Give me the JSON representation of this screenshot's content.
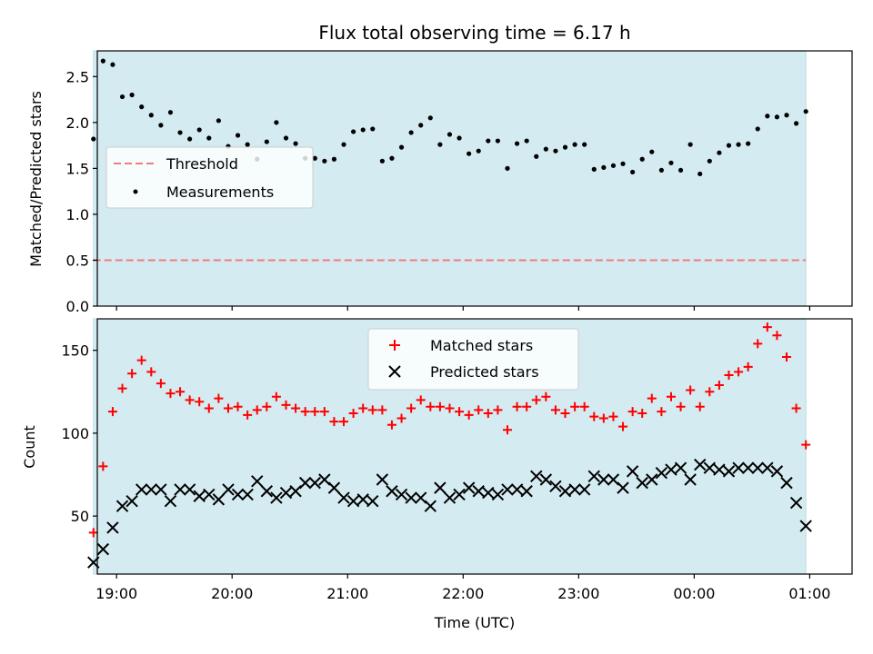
{
  "chart_data": {
    "type": "scatter",
    "title": "Flux total observing time = 6.17 h",
    "xlabel": "Time (UTC)",
    "x_ticks": [
      "19:00",
      "20:00",
      "21:00",
      "22:00",
      "23:00",
      "00:00",
      "01:00"
    ],
    "x_range": [
      "18:50",
      "01:22"
    ],
    "observing_window": [
      "18:48",
      "00:58"
    ],
    "colors": {
      "shade": "#d4ebf1",
      "threshold": "#f07c7c",
      "measurements": "#000000",
      "matched": "#ff0000",
      "predicted": "#000000"
    },
    "panels": [
      {
        "ylabel": "Matched/Predicted stars",
        "ylim": [
          0,
          2.78
        ],
        "y_ticks": [
          "0.0",
          "0.5",
          "1.0",
          "1.5",
          "2.0",
          "2.5"
        ],
        "legend": {
          "placement": "center-left",
          "entries": [
            "Threshold",
            "Measurements"
          ]
        },
        "threshold": {
          "name": "Threshold",
          "y": 0.5
        },
        "series": [
          {
            "name": "Measurements",
            "marker": "dot",
            "x": [
              "18:48",
              "18:53",
              "18:58",
              "19:03",
              "19:08",
              "19:13",
              "19:18",
              "19:23",
              "19:28",
              "19:33",
              "19:38",
              "19:43",
              "19:48",
              "19:53",
              "19:58",
              "20:03",
              "20:08",
              "20:13",
              "20:18",
              "20:23",
              "20:28",
              "20:33",
              "20:38",
              "20:43",
              "20:48",
              "20:53",
              "20:58",
              "21:03",
              "21:08",
              "21:13",
              "21:18",
              "21:23",
              "21:28",
              "21:33",
              "21:38",
              "21:43",
              "21:48",
              "21:53",
              "21:58",
              "22:03",
              "22:08",
              "22:13",
              "22:18",
              "22:23",
              "22:28",
              "22:33",
              "22:38",
              "22:43",
              "22:48",
              "22:53",
              "22:58",
              "23:03",
              "23:08",
              "23:13",
              "23:18",
              "23:23",
              "23:28",
              "23:33",
              "23:38",
              "23:43",
              "23:48",
              "23:53",
              "23:58",
              "00:03",
              "00:08",
              "00:13",
              "00:18",
              "00:23",
              "00:28",
              "00:33",
              "00:38",
              "00:43",
              "00:48",
              "00:53",
              "00:58"
            ],
            "y": [
              1.82,
              2.67,
              2.63,
              2.28,
              2.3,
              2.17,
              2.08,
              1.97,
              2.11,
              1.89,
              1.82,
              1.92,
              1.83,
              2.02,
              1.74,
              1.86,
              1.76,
              1.6,
              1.79,
              2.0,
              1.83,
              1.77,
              1.61,
              1.61,
              1.58,
              1.6,
              1.76,
              1.9,
              1.92,
              1.93,
              1.58,
              1.61,
              1.73,
              1.89,
              1.97,
              2.05,
              1.76,
              1.87,
              1.83,
              1.66,
              1.69,
              1.8,
              1.8,
              1.5,
              1.77,
              1.8,
              1.63,
              1.71,
              1.69,
              1.73,
              1.76,
              1.76,
              1.49,
              1.51,
              1.53,
              1.55,
              1.46,
              1.6,
              1.68,
              1.48,
              1.56,
              1.48,
              1.76,
              1.44,
              1.58,
              1.67,
              1.75,
              1.76,
              1.77,
              1.93,
              2.07,
              2.06,
              2.08,
              1.99,
              2.12
            ]
          }
        ]
      },
      {
        "ylabel": "Count",
        "ylim": [
          15,
          169
        ],
        "y_ticks": [
          "50",
          "100",
          "150"
        ],
        "legend": {
          "placement": "upper-center",
          "entries": [
            "Matched stars",
            "Predicted stars"
          ]
        },
        "series": [
          {
            "name": "Matched stars",
            "marker": "plus",
            "x": [
              "18:48",
              "18:53",
              "18:58",
              "19:03",
              "19:08",
              "19:13",
              "19:18",
              "19:23",
              "19:28",
              "19:33",
              "19:38",
              "19:43",
              "19:48",
              "19:53",
              "19:58",
              "20:03",
              "20:08",
              "20:13",
              "20:18",
              "20:23",
              "20:28",
              "20:33",
              "20:38",
              "20:43",
              "20:48",
              "20:53",
              "20:58",
              "21:03",
              "21:08",
              "21:13",
              "21:18",
              "21:23",
              "21:28",
              "21:33",
              "21:38",
              "21:43",
              "21:48",
              "21:53",
              "21:58",
              "22:03",
              "22:08",
              "22:13",
              "22:18",
              "22:23",
              "22:28",
              "22:33",
              "22:38",
              "22:43",
              "22:48",
              "22:53",
              "22:58",
              "23:03",
              "23:08",
              "23:13",
              "23:18",
              "23:23",
              "23:28",
              "23:33",
              "23:38",
              "23:43",
              "23:48",
              "23:53",
              "23:58",
              "00:03",
              "00:08",
              "00:13",
              "00:18",
              "00:23",
              "00:28",
              "00:33",
              "00:38",
              "00:43",
              "00:48",
              "00:53",
              "00:58"
            ],
            "y": [
              40,
              80,
              113,
              127,
              136,
              144,
              137,
              130,
              124,
              125,
              120,
              119,
              115,
              121,
              115,
              116,
              111,
              114,
              116,
              122,
              117,
              115,
              113,
              113,
              113,
              107,
              107,
              112,
              115,
              114,
              114,
              105,
              109,
              115,
              120,
              116,
              116,
              115,
              113,
              111,
              114,
              112,
              114,
              102,
              116,
              116,
              120,
              122,
              114,
              112,
              116,
              116,
              110,
              109,
              110,
              104,
              113,
              112,
              121,
              113,
              122,
              116,
              126,
              116,
              125,
              129,
              135,
              137,
              140,
              154,
              164,
              159,
              146,
              115,
              93
            ]
          },
          {
            "name": "Predicted stars",
            "marker": "x",
            "x": [
              "18:48",
              "18:53",
              "18:58",
              "19:03",
              "19:08",
              "19:13",
              "19:18",
              "19:23",
              "19:28",
              "19:33",
              "19:38",
              "19:43",
              "19:48",
              "19:53",
              "19:58",
              "20:03",
              "20:08",
              "20:13",
              "20:18",
              "20:23",
              "20:28",
              "20:33",
              "20:38",
              "20:43",
              "20:48",
              "20:53",
              "20:58",
              "21:03",
              "21:08",
              "21:13",
              "21:18",
              "21:23",
              "21:28",
              "21:33",
              "21:38",
              "21:43",
              "21:48",
              "21:53",
              "21:58",
              "22:03",
              "22:08",
              "22:13",
              "22:18",
              "22:23",
              "22:28",
              "22:33",
              "22:38",
              "22:43",
              "22:48",
              "22:53",
              "22:58",
              "23:03",
              "23:08",
              "23:13",
              "23:18",
              "23:23",
              "23:28",
              "23:33",
              "23:38",
              "23:43",
              "23:48",
              "23:53",
              "23:58",
              "00:03",
              "00:08",
              "00:13",
              "00:18",
              "00:23",
              "00:28",
              "00:33",
              "00:38",
              "00:43",
              "00:48",
              "00:53",
              "00:58"
            ],
            "y": [
              22,
              30,
              43,
              56,
              59,
              66,
              66,
              66,
              59,
              66,
              66,
              62,
              63,
              60,
              66,
              63,
              63,
              71,
              65,
              61,
              64,
              65,
              70,
              70,
              72,
              67,
              61,
              59,
              60,
              59,
              72,
              65,
              63,
              61,
              61,
              56,
              67,
              61,
              63,
              67,
              65,
              64,
              63,
              66,
              66,
              65,
              74,
              72,
              68,
              65,
              66,
              66,
              74,
              72,
              72,
              67,
              77,
              70,
              72,
              76,
              78,
              79,
              72,
              81,
              79,
              78,
              77,
              79,
              79,
              79,
              79,
              77,
              70,
              58,
              44
            ]
          }
        ]
      }
    ]
  }
}
